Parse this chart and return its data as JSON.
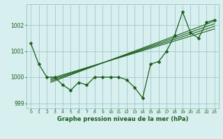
{
  "xlabel": "Graphe pression niveau de la mer (hPa)",
  "x": [
    0,
    1,
    2,
    3,
    4,
    5,
    6,
    7,
    8,
    9,
    10,
    11,
    12,
    13,
    14,
    15,
    16,
    17,
    18,
    19,
    20,
    21,
    22,
    23
  ],
  "y_main": [
    1001.3,
    1000.5,
    1000.0,
    1000.0,
    999.7,
    999.5,
    999.8,
    999.7,
    1000.0,
    1000.0,
    1000.0,
    1000.0,
    999.9,
    999.6,
    999.2,
    1000.5,
    1000.6,
    1001.0,
    1001.6,
    1002.5,
    1001.7,
    1001.5,
    1002.1,
    1002.2
  ],
  "line_color": "#1a5e1a",
  "bg_color": "#d8eff0",
  "grid_color": "#a0c8c8",
  "ylim": [
    998.8,
    1002.8
  ],
  "yticks": [
    999,
    1000,
    1001,
    1002
  ],
  "xticks": [
    0,
    1,
    2,
    3,
    4,
    5,
    6,
    7,
    8,
    9,
    10,
    11,
    12,
    13,
    14,
    15,
    16,
    17,
    18,
    19,
    20,
    21,
    22,
    23
  ],
  "markersize": 2.5,
  "linewidth": 0.9,
  "straight_lines": [
    {
      "x": [
        2.5,
        23
      ],
      "y": [
        999.95,
        1001.85
      ]
    },
    {
      "x": [
        2.5,
        23
      ],
      "y": [
        999.9,
        1001.95
      ]
    },
    {
      "x": [
        2.5,
        23
      ],
      "y": [
        999.85,
        1002.05
      ]
    },
    {
      "x": [
        2.5,
        23
      ],
      "y": [
        999.8,
        1002.15
      ]
    }
  ]
}
